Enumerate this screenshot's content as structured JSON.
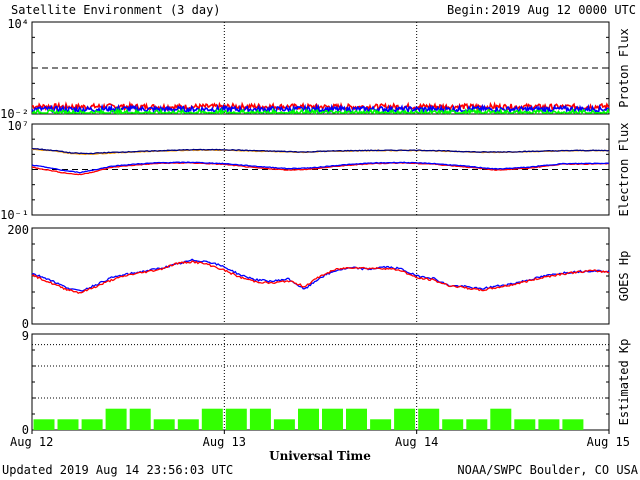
{
  "header": {
    "title": "Satellite Environment (3 day)",
    "begin_label": "Begin:",
    "begin_value": "2019 Aug 12 0000 UTC"
  },
  "footer": {
    "updated": "Updated 2019 Aug 14 23:56:03 UTC",
    "credit": "NOAA/SWPC Boulder, CO USA"
  },
  "colors": {
    "red": "#ff0000",
    "blue": "#0000ff",
    "green": "#00ff00",
    "orange": "#ffa500",
    "navy": "#000080",
    "kp_bar": "#33ff00"
  },
  "chart_data": [
    {
      "type": "line",
      "name": "proton-flux",
      "ylabel": "Proton Flux",
      "yscale": "log",
      "ylim": [
        0.01,
        10000
      ],
      "y_tick_labels": [
        "10⁴",
        "10⁻²"
      ],
      "threshold": 10,
      "series": [
        {
          "color": "red",
          "values": [
            0.032,
            0.03,
            0.031,
            0.029,
            0.03,
            0.031,
            0.03,
            0.029,
            0.03,
            0.031,
            0.03,
            0.03,
            0.029,
            0.031
          ]
        },
        {
          "color": "blue",
          "values": [
            0.021,
            0.02,
            0.022,
            0.02,
            0.021,
            0.02,
            0.021,
            0.02,
            0.021,
            0.02,
            0.021,
            0.02,
            0.021,
            0.021
          ]
        },
        {
          "color": "green",
          "values": [
            0.0125,
            0.0115,
            0.0126,
            0.0118,
            0.0124,
            0.0116,
            0.0125,
            0.0117,
            0.0124,
            0.0115,
            0.0125,
            0.0118,
            0.0123,
            0.0124
          ]
        }
      ]
    },
    {
      "type": "line",
      "name": "electron-flux",
      "ylabel": "Electron Flux",
      "yscale": "log",
      "ylim": [
        0.1,
        10000000
      ],
      "y_tick_labels": [
        "10⁷",
        "10⁻¹"
      ],
      "threshold": 1000,
      "series": [
        {
          "color": "orange",
          "x_hours": [
            0,
            3,
            5,
            7,
            9,
            12,
            16,
            20,
            24,
            28,
            32,
            34,
            36,
            40,
            44,
            48,
            52,
            56,
            60,
            64,
            68,
            72
          ],
          "values": [
            60000,
            40000,
            25000,
            22000,
            26000,
            33000,
            42000,
            50000,
            50000,
            40000,
            35000,
            32000,
            38000,
            43000,
            46000,
            47000,
            40000,
            32000,
            33000,
            40000,
            45000,
            45000
          ]
        },
        {
          "color": "navy",
          "x_hours": [
            0,
            3,
            5,
            7,
            9,
            12,
            16,
            20,
            24,
            28,
            32,
            34,
            36,
            40,
            44,
            48,
            52,
            56,
            60,
            64,
            68,
            72
          ],
          "values": [
            70000,
            45000,
            28000,
            25000,
            30000,
            36000,
            45000,
            55000,
            55000,
            45000,
            38000,
            34000,
            40000,
            46000,
            48000,
            50000,
            42000,
            34000,
            36000,
            42000,
            47000,
            47000
          ]
        },
        {
          "color": "red",
          "x_hours": [
            0,
            2,
            4,
            6,
            8,
            10,
            13,
            16,
            20,
            24,
            28,
            32,
            35,
            38,
            42,
            46,
            50,
            54,
            58,
            62,
            66,
            72
          ],
          "values": [
            1600,
            900,
            500,
            350,
            700,
            1600,
            2500,
            3500,
            3800,
            2800,
            1400,
            900,
            1100,
            1900,
            3200,
            3800,
            3000,
            1700,
            900,
            1300,
            2900,
            3200
          ]
        },
        {
          "color": "blue",
          "x_hours": [
            0,
            2,
            4,
            6,
            8,
            10,
            13,
            16,
            20,
            24,
            28,
            32,
            35,
            38,
            42,
            46,
            50,
            54,
            58,
            62,
            66,
            72
          ],
          "values": [
            2400,
            1500,
            800,
            550,
            1000,
            2000,
            3000,
            4000,
            4300,
            3300,
            1900,
            1200,
            1400,
            2300,
            3600,
            4200,
            3400,
            2000,
            1100,
            1600,
            3200,
            3600
          ]
        }
      ]
    },
    {
      "type": "line",
      "name": "goes-hp",
      "ylabel": "GOES Hp",
      "ylim": [
        0,
        200
      ],
      "y_tick_labels": [
        "200",
        "0"
      ],
      "series": [
        {
          "color": "blue",
          "x_hours": [
            0,
            2,
            4,
            6,
            8,
            10,
            12,
            14,
            16,
            18,
            20,
            22,
            24,
            26,
            28,
            30,
            32,
            34,
            36,
            38,
            40,
            42,
            44,
            46,
            48,
            50,
            52,
            54,
            56,
            58,
            60,
            62,
            64,
            66,
            68,
            70,
            72
          ],
          "values": [
            105,
            94,
            78,
            68,
            82,
            97,
            104,
            110,
            116,
            124,
            133,
            130,
            119,
            102,
            92,
            89,
            94,
            72,
            97,
            112,
            117,
            114,
            119,
            115,
            100,
            96,
            80,
            78,
            73,
            79,
            84,
            92,
            100,
            106,
            109,
            111,
            110
          ]
        },
        {
          "color": "red",
          "x_hours": [
            0,
            2,
            4,
            6,
            8,
            10,
            12,
            14,
            16,
            18,
            20,
            22,
            24,
            26,
            28,
            30,
            32,
            34,
            36,
            38,
            40,
            42,
            44,
            46,
            48,
            50,
            52,
            54,
            56,
            58,
            60,
            62,
            64,
            66,
            68,
            70,
            72
          ],
          "values": [
            102,
            88,
            74,
            65,
            78,
            92,
            102,
            108,
            114,
            126,
            130,
            124,
            112,
            97,
            88,
            85,
            90,
            78,
            100,
            114,
            118,
            116,
            116,
            112,
            96,
            92,
            80,
            76,
            70,
            76,
            82,
            90,
            98,
            104,
            108,
            111,
            108
          ]
        }
      ]
    },
    {
      "type": "bar",
      "name": "estimated-kp",
      "ylabel": "Estimated Kp",
      "ylim": [
        0,
        9
      ],
      "y_tick_labels": [
        "9",
        "0"
      ],
      "values": [
        1,
        1,
        1,
        2,
        2,
        1,
        1,
        2,
        2,
        2,
        1,
        2,
        2,
        2,
        1,
        2,
        2,
        1,
        1,
        2,
        1,
        1,
        1,
        0
      ],
      "xlabel": "Universal Time",
      "x_tick_labels": [
        "Aug 12",
        "Aug 13",
        "Aug 14",
        "Aug 15"
      ]
    }
  ]
}
